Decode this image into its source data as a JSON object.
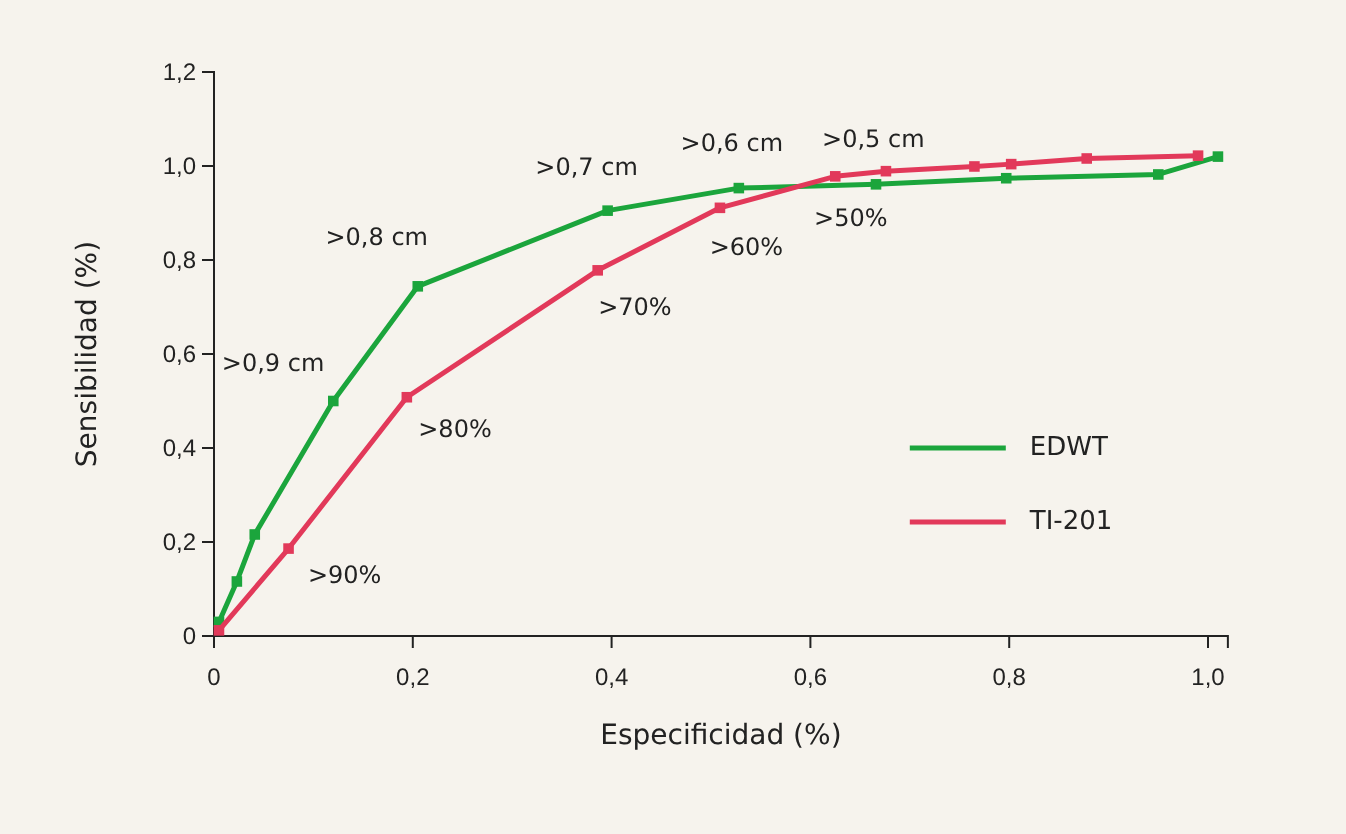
{
  "chart_data": {
    "type": "line",
    "xlabel": "Especificidad (%)",
    "ylabel": "Sensibilidad (%)",
    "xlim": [
      0,
      1.02
    ],
    "ylim": [
      0,
      1.2
    ],
    "xticks": [
      0,
      {
        "value": 0.2,
        "label": "0,2"
      },
      {
        "value": 0.4,
        "label": "0,4"
      },
      {
        "value": 0.6,
        "label": "0,6"
      },
      {
        "value": 0.8,
        "label": "0,8"
      },
      {
        "value": 1.0,
        "label": "1,0"
      }
    ],
    "yticks": [
      0,
      {
        "value": 0.2,
        "label": "0,2"
      },
      {
        "value": 0.4,
        "label": "0,4"
      },
      {
        "value": 0.6,
        "label": "0,6"
      },
      {
        "value": 0.8,
        "label": "0,8"
      },
      {
        "value": 1.0,
        "label": "1,0"
      },
      {
        "value": 1.2,
        "label": "1,2"
      }
    ],
    "grid": false,
    "legend": "bottom right",
    "marker": "square",
    "line_style": "solid",
    "series": [
      {
        "name": "EDWT",
        "color": "#1ba53c",
        "x": [
          0.005,
          0.023,
          0.041,
          0.12,
          0.205,
          0.396,
          0.528,
          0.666,
          0.797,
          0.95,
          1.01
        ],
        "values": [
          0.03,
          0.116,
          0.216,
          0.5,
          0.744,
          0.905,
          0.953,
          0.961,
          0.974,
          0.982,
          1.02
        ]
      },
      {
        "name": "TI-201",
        "color": "#e2395a",
        "x": [
          0.005,
          0.075,
          0.194,
          0.386,
          0.509,
          0.625,
          0.676,
          0.765,
          0.802,
          0.878,
          0.99
        ],
        "values": [
          0.012,
          0.186,
          0.508,
          0.778,
          0.911,
          0.978,
          0.989,
          0.999,
          1.004,
          1.016,
          1.022
        ]
      }
    ],
    "annotations": [
      {
        "text": ">0,9 cm",
        "x": 0.12,
        "y": 0.5
      },
      {
        "text": ">0,8 cm",
        "x": 0.205,
        "y": 0.744
      },
      {
        "text": ">0,7 cm",
        "x": 0.396,
        "y": 0.905
      },
      {
        "text": ">0,6 cm",
        "x": 0.528,
        "y": 0.953
      },
      {
        "text": ">0,5 cm",
        "x": 0.666,
        "y": 0.961
      },
      {
        "text": ">90%",
        "x": 0.075,
        "y": 0.186
      },
      {
        "text": ">80%",
        "x": 0.194,
        "y": 0.508
      },
      {
        "text": ">70%",
        "x": 0.386,
        "y": 0.778
      },
      {
        "text": ">60%",
        "x": 0.509,
        "y": 0.911
      },
      {
        "text": ">50%",
        "x": 0.625,
        "y": 0.978
      }
    ]
  }
}
